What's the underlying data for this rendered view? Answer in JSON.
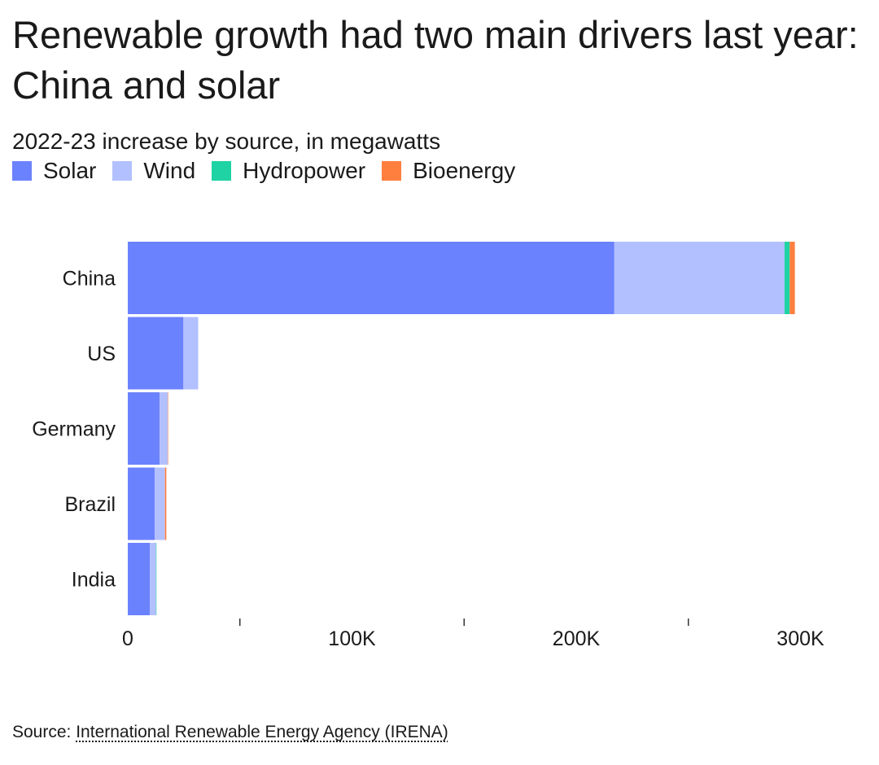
{
  "header": {
    "title": "Renewable growth had two main drivers last year: China and solar",
    "subtitle": "2022-23 increase by source, in megawatts"
  },
  "legend": [
    {
      "label": "Solar",
      "color": "#6b82ff"
    },
    {
      "label": "Wind",
      "color": "#b3c0ff"
    },
    {
      "label": "Hydropower",
      "color": "#1fd3a4"
    },
    {
      "label": "Bioenergy",
      "color": "#ff7f3f"
    }
  ],
  "chart_data": {
    "type": "bar",
    "orientation": "horizontal",
    "stacked": true,
    "categories": [
      "China",
      "US",
      "Germany",
      "Brazil",
      "India"
    ],
    "series": [
      {
        "name": "Solar",
        "color": "#6b82ff",
        "values": [
          217000,
          24800,
          14200,
          12000,
          9800
        ]
      },
      {
        "name": "Wind",
        "color": "#b3c0ff",
        "values": [
          75900,
          6600,
          3600,
          4600,
          2800
        ]
      },
      {
        "name": "Hydropower",
        "color": "#1fd3a4",
        "values": [
          2300,
          0,
          0,
          0,
          200
        ]
      },
      {
        "name": "Bioenergy",
        "color": "#ff7f3f",
        "values": [
          2300,
          0,
          200,
          600,
          0
        ]
      }
    ],
    "xlim": [
      0,
      310000
    ],
    "xticks": [
      0,
      50000,
      100000,
      150000,
      200000,
      250000,
      300000
    ],
    "xtick_labels": [
      "0",
      "",
      "100K",
      "",
      "200K",
      "",
      "300K"
    ],
    "grid": false,
    "legend_position": "top-left"
  },
  "footer": {
    "source_prefix": "Source: ",
    "source_link": "International Renewable Energy Agency (IRENA)"
  }
}
